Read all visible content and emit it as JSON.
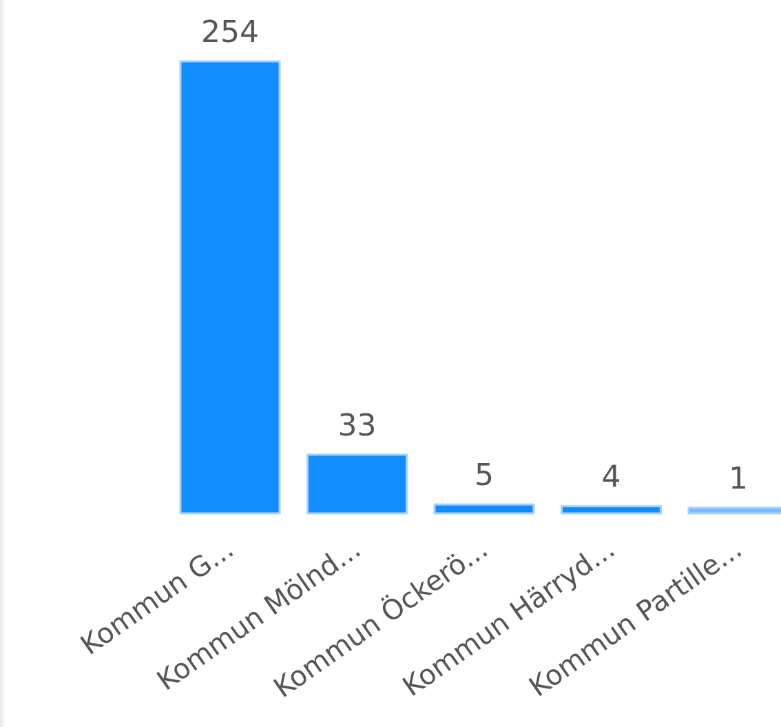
{
  "chart_data": {
    "type": "bar",
    "title": "",
    "xlabel": "",
    "ylabel": "",
    "categories": [
      "Kommun G...",
      "Kommun Mölnd...",
      "Kommun Öckerö...",
      "Kommun Härryd...",
      "Kommun Partille..."
    ],
    "values": [
      254,
      33,
      5,
      4,
      1
    ],
    "data_labels": [
      "254",
      "33",
      "5",
      "4",
      "1"
    ],
    "ylim": [
      0,
      254
    ],
    "grid": false,
    "legend": "none",
    "colors": {
      "bar": "#118dff",
      "bar_highlight": "#7ab8ff",
      "bar_outline": "#a8d1ff",
      "label": "#555555"
    },
    "highlight_index": 4
  }
}
